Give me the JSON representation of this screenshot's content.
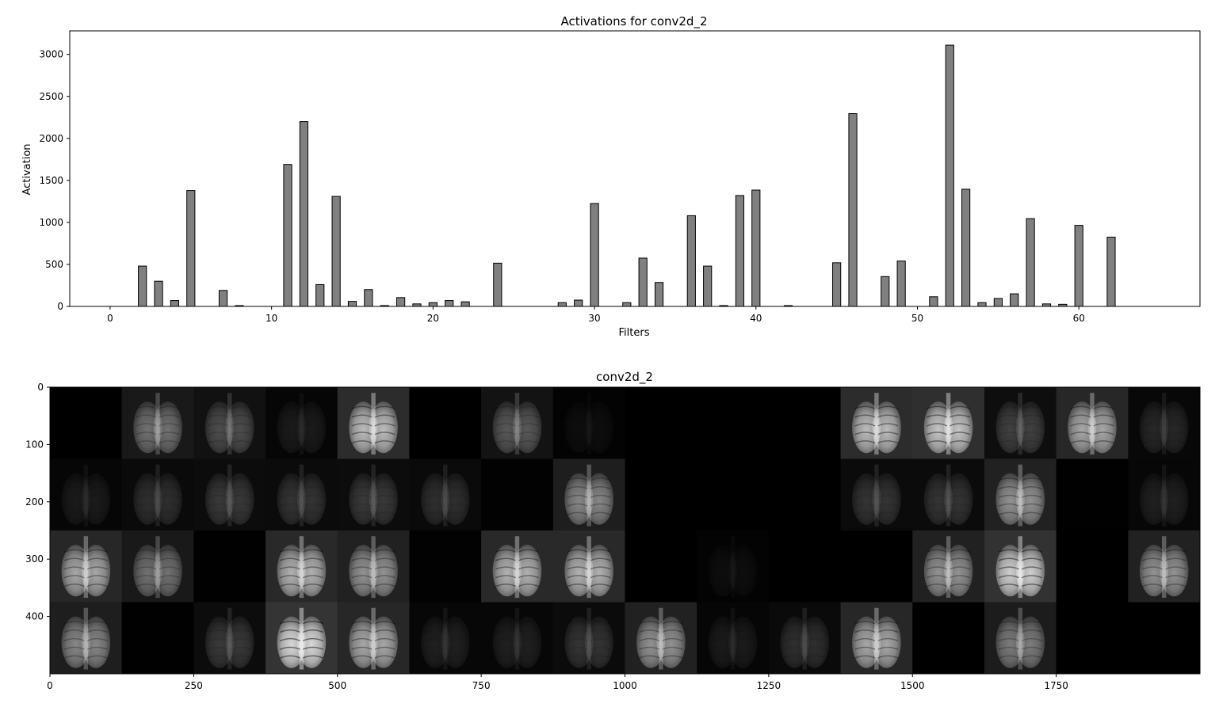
{
  "colors": {
    "bar_fill": "#808080",
    "bar_edge": "#000000",
    "axes": "#000000",
    "background": "#ffffff"
  },
  "chart_data": [
    {
      "type": "bar",
      "title": "Activations for conv2d_2",
      "xlabel": "Filters",
      "ylabel": "Activation",
      "xlim": [
        -2.5,
        67.5
      ],
      "ylim": [
        0,
        3280
      ],
      "xticks": [
        0,
        10,
        20,
        30,
        40,
        50,
        60
      ],
      "yticks": [
        0,
        500,
        1000,
        1500,
        2000,
        2500,
        3000
      ],
      "grid": false,
      "legend": "none",
      "x": [
        0,
        1,
        2,
        3,
        4,
        5,
        6,
        7,
        8,
        9,
        10,
        11,
        12,
        13,
        14,
        15,
        16,
        17,
        18,
        19,
        20,
        21,
        22,
        23,
        24,
        25,
        26,
        27,
        28,
        29,
        30,
        31,
        32,
        33,
        34,
        35,
        36,
        37,
        38,
        39,
        40,
        41,
        42,
        43,
        44,
        45,
        46,
        47,
        48,
        49,
        50,
        51,
        52,
        53,
        54,
        55,
        56,
        57,
        58,
        59,
        60,
        61,
        62,
        63
      ],
      "values": [
        0,
        0,
        480,
        300,
        70,
        1380,
        0,
        190,
        10,
        0,
        0,
        1690,
        2200,
        260,
        1310,
        60,
        200,
        10,
        105,
        30,
        45,
        70,
        55,
        0,
        515,
        0,
        0,
        0,
        45,
        75,
        1225,
        0,
        45,
        575,
        285,
        0,
        1080,
        480,
        10,
        1320,
        1385,
        0,
        10,
        0,
        0,
        520,
        2295,
        0,
        355,
        540,
        0,
        115,
        3110,
        1395,
        45,
        95,
        150,
        1045,
        30,
        25,
        965,
        0,
        825,
        0
      ]
    },
    {
      "type": "heatmap",
      "title": "conv2d_2",
      "xlabel": "",
      "ylabel": "",
      "colormap": "gray",
      "grid_rows": 4,
      "grid_cols": 16,
      "tile_size": 125,
      "xlim": [
        0,
        2000
      ],
      "ylim": [
        0,
        500
      ],
      "xticks": [
        0,
        250,
        500,
        750,
        1000,
        1250,
        1500,
        1750
      ],
      "yticks": [
        0,
        100,
        200,
        300,
        400
      ],
      "tile_brightness": [
        [
          0.0,
          0.45,
          0.3,
          0.1,
          0.8,
          0.0,
          0.35,
          0.05,
          0.0,
          0.0,
          0.0,
          0.8,
          0.85,
          0.25,
          0.7,
          0.15
        ],
        [
          0.1,
          0.18,
          0.22,
          0.2,
          0.22,
          0.18,
          0.03,
          0.55,
          0.0,
          0.0,
          0.0,
          0.2,
          0.2,
          0.6,
          0.02,
          0.12
        ],
        [
          0.7,
          0.45,
          0.02,
          0.75,
          0.6,
          0.03,
          0.75,
          0.75,
          0.0,
          0.05,
          0.0,
          0.0,
          0.6,
          0.9,
          0.0,
          0.6
        ],
        [
          0.55,
          0.02,
          0.22,
          0.95,
          0.7,
          0.12,
          0.12,
          0.2,
          0.6,
          0.1,
          0.18,
          0.7,
          0.0,
          0.5,
          0.0,
          0.0
        ]
      ]
    }
  ]
}
